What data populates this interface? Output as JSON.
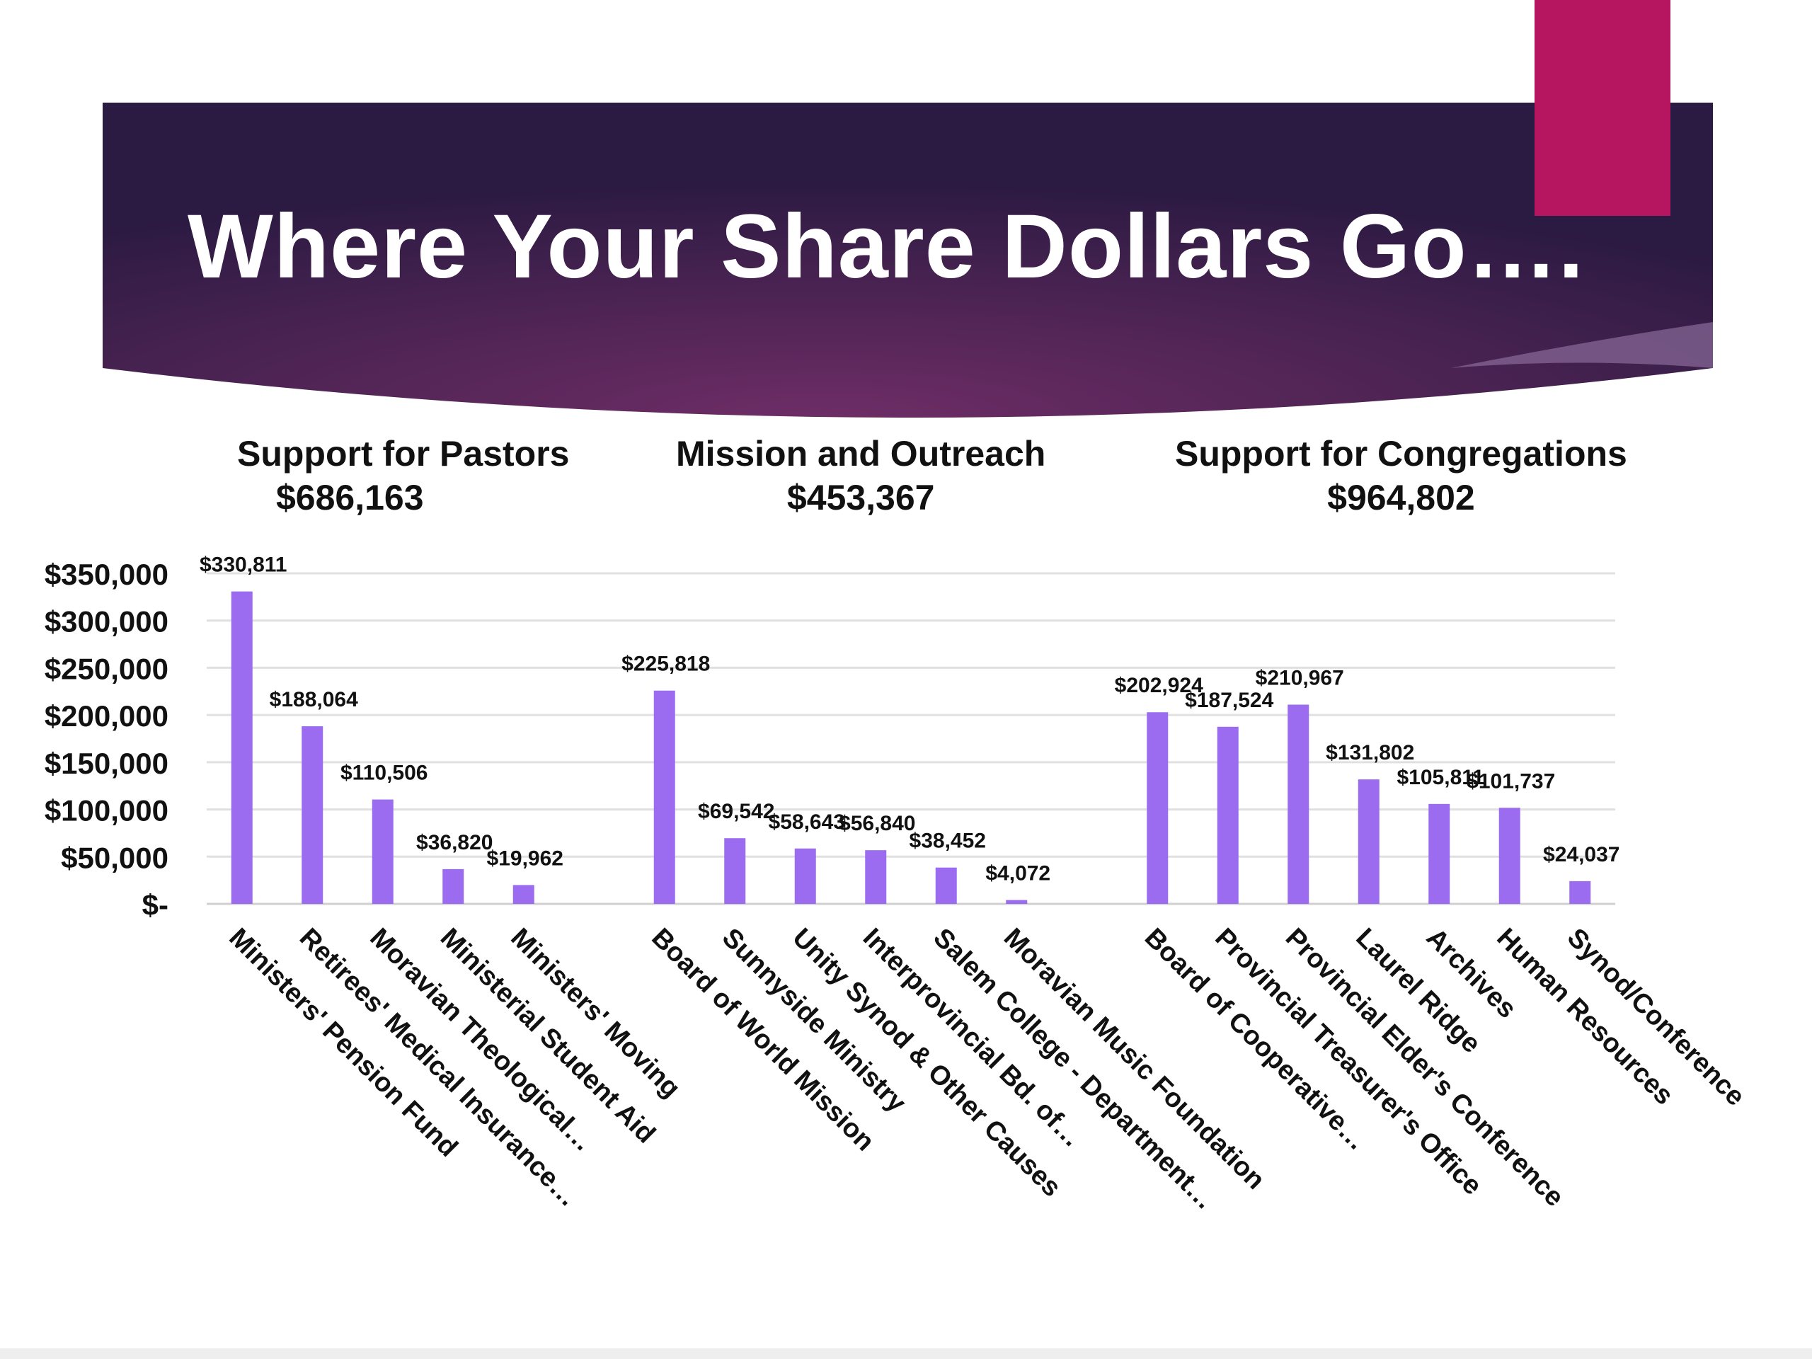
{
  "slide": {
    "title": "Where Your Share Dollars Go….",
    "colors": {
      "banner_dark": "#2e1a45",
      "banner_mid": "#6b2d63",
      "accent_tab": "#b5165f",
      "bar": "#9b6cf0",
      "gridline": "#e0e0e0",
      "text": "#111111"
    }
  },
  "groups": [
    {
      "name": "Support for Pastors",
      "total": "$686,163"
    },
    {
      "name": "Mission and Outreach",
      "total": "$453,367"
    },
    {
      "name": "Support for Congregations",
      "total": "$964,802"
    }
  ],
  "chart_data": {
    "type": "bar",
    "title": "",
    "xlabel": "",
    "ylabel": "",
    "ylim": [
      0,
      350000
    ],
    "y_ticks": [
      {
        "value": 0,
        "label": "$-"
      },
      {
        "value": 50000,
        "label": "$50,000"
      },
      {
        "value": 100000,
        "label": "$100,000"
      },
      {
        "value": 150000,
        "label": "$150,000"
      },
      {
        "value": 200000,
        "label": "$200,000"
      },
      {
        "value": 250000,
        "label": "$250,000"
      },
      {
        "value": 300000,
        "label": "$300,000"
      },
      {
        "value": 350000,
        "label": "$350,000"
      }
    ],
    "grid": true,
    "categories": [
      "Ministers' Pension Fund",
      "Retirees' Medical Insurance…",
      "Moravian Theological…",
      "Ministerial Student Aid",
      "Ministers' Moving",
      "",
      "Board of World Mission",
      "Sunnyside Ministry",
      "Unity Synod & Other Causes",
      "Interprovincial Bd. of…",
      "Salem College - Department…",
      "Moravian Music Foundation",
      "",
      "Board of Cooperative…",
      "Provincial Treasurer's Office",
      "Provincial Elder's Conference",
      "Laurel Ridge",
      "Archives",
      "Human Resources",
      "Synod/Conference"
    ],
    "values": [
      330811,
      188064,
      110506,
      36820,
      19962,
      null,
      225818,
      69542,
      58643,
      56840,
      38452,
      4072,
      null,
      202924,
      187524,
      210967,
      131802,
      105811,
      101737,
      24037
    ],
    "data_labels": [
      "$330,811",
      "$188,064",
      "$110,506",
      "$36,820",
      "$19,962",
      "",
      "$225,818",
      "$69,542",
      "$58,643",
      "$56,840",
      "$38,452",
      "$4,072",
      "",
      "$202,924",
      "$187,524",
      "$210,967",
      "$131,802",
      "$105,811",
      "$101,737",
      "$24,037"
    ]
  }
}
